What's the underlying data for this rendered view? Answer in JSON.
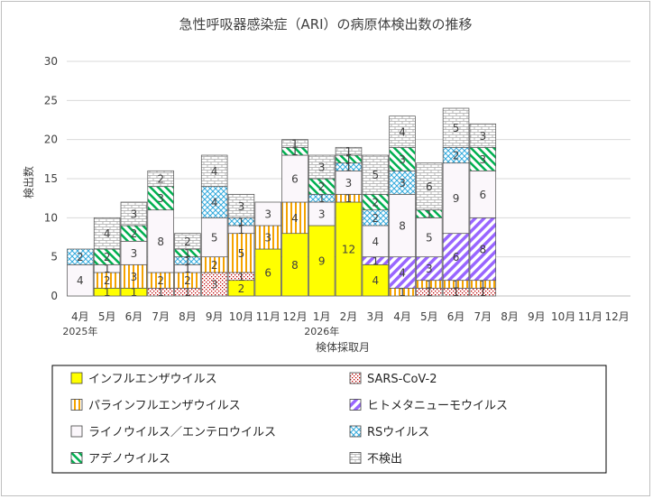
{
  "chart_data": {
    "type": "bar",
    "stacked": true,
    "title": "急性呼吸器感染症（ARI）の病原体検出数の推移",
    "ylabel": "検出数",
    "xlabel": "検体採取月",
    "ylim": [
      0,
      30
    ],
    "yticks": [
      0,
      5,
      10,
      15,
      20,
      25,
      30
    ],
    "grid": true,
    "legend_position": "bottom",
    "categories": [
      "4月",
      "5月",
      "6月",
      "7月",
      "8月",
      "9月",
      "10月",
      "11月",
      "12月",
      "1月",
      "2月",
      "3月",
      "4月",
      "5月",
      "6月",
      "7月",
      "8月",
      "9月",
      "10月",
      "11月",
      "12月"
    ],
    "year_labels": [
      {
        "index": 0,
        "label": "2025年"
      },
      {
        "index": 9,
        "label": "2026年"
      }
    ],
    "series": [
      {
        "name": "インフルエンザウイルス",
        "pattern": "solid",
        "color": "#ffff00",
        "values": [
          0,
          1,
          1,
          0,
          0,
          0,
          2,
          6,
          8,
          9,
          12,
          4,
          0,
          0,
          0,
          0,
          0,
          0,
          0,
          0,
          0
        ]
      },
      {
        "name": "SARS-CoV-2",
        "pattern": "dots",
        "color": "#c00000",
        "values": [
          0,
          0,
          0,
          1,
          1,
          3,
          1,
          0,
          0,
          0,
          0,
          0,
          0,
          1,
          1,
          1,
          0,
          0,
          0,
          0,
          0
        ]
      },
      {
        "name": "パラインフルエンザウイルス",
        "pattern": "vertical",
        "color": "#f5a300",
        "values": [
          0,
          2,
          3,
          2,
          2,
          2,
          5,
          3,
          4,
          0,
          1,
          0,
          1,
          1,
          1,
          1,
          0,
          0,
          0,
          0,
          0
        ]
      },
      {
        "name": "ヒトメタニューモウイルス",
        "pattern": "diagonal",
        "color": "#9966ff",
        "values": [
          0,
          0,
          0,
          0,
          0,
          0,
          0,
          0,
          0,
          0,
          0,
          1,
          4,
          3,
          6,
          8,
          0,
          0,
          0,
          0,
          0
        ]
      },
      {
        "name": "ライノウイルス／エンテロウイルス",
        "pattern": "plain",
        "color": "#cc99cc",
        "values": [
          4,
          1,
          3,
          8,
          1,
          5,
          1,
          3,
          6,
          3,
          3,
          4,
          8,
          5,
          9,
          6,
          0,
          0,
          0,
          0,
          0
        ]
      },
      {
        "name": "RSウイルス",
        "pattern": "cross",
        "color": "#33aadd",
        "values": [
          2,
          0,
          0,
          0,
          1,
          4,
          1,
          0,
          0,
          1,
          1,
          2,
          3,
          0,
          2,
          0,
          0,
          0,
          0,
          0,
          0
        ]
      },
      {
        "name": "アデノウイルス",
        "pattern": "green",
        "color": "#00b050",
        "values": [
          0,
          2,
          2,
          3,
          1,
          0,
          0,
          0,
          1,
          2,
          1,
          2,
          3,
          1,
          0,
          3,
          0,
          0,
          0,
          0,
          0
        ]
      },
      {
        "name": "不検出",
        "pattern": "brick",
        "color": "#a6a6a6",
        "values": [
          0,
          4,
          3,
          2,
          2,
          4,
          3,
          0,
          1,
          3,
          1,
          5,
          4,
          6,
          5,
          3,
          0,
          0,
          0,
          0,
          0
        ]
      }
    ]
  }
}
